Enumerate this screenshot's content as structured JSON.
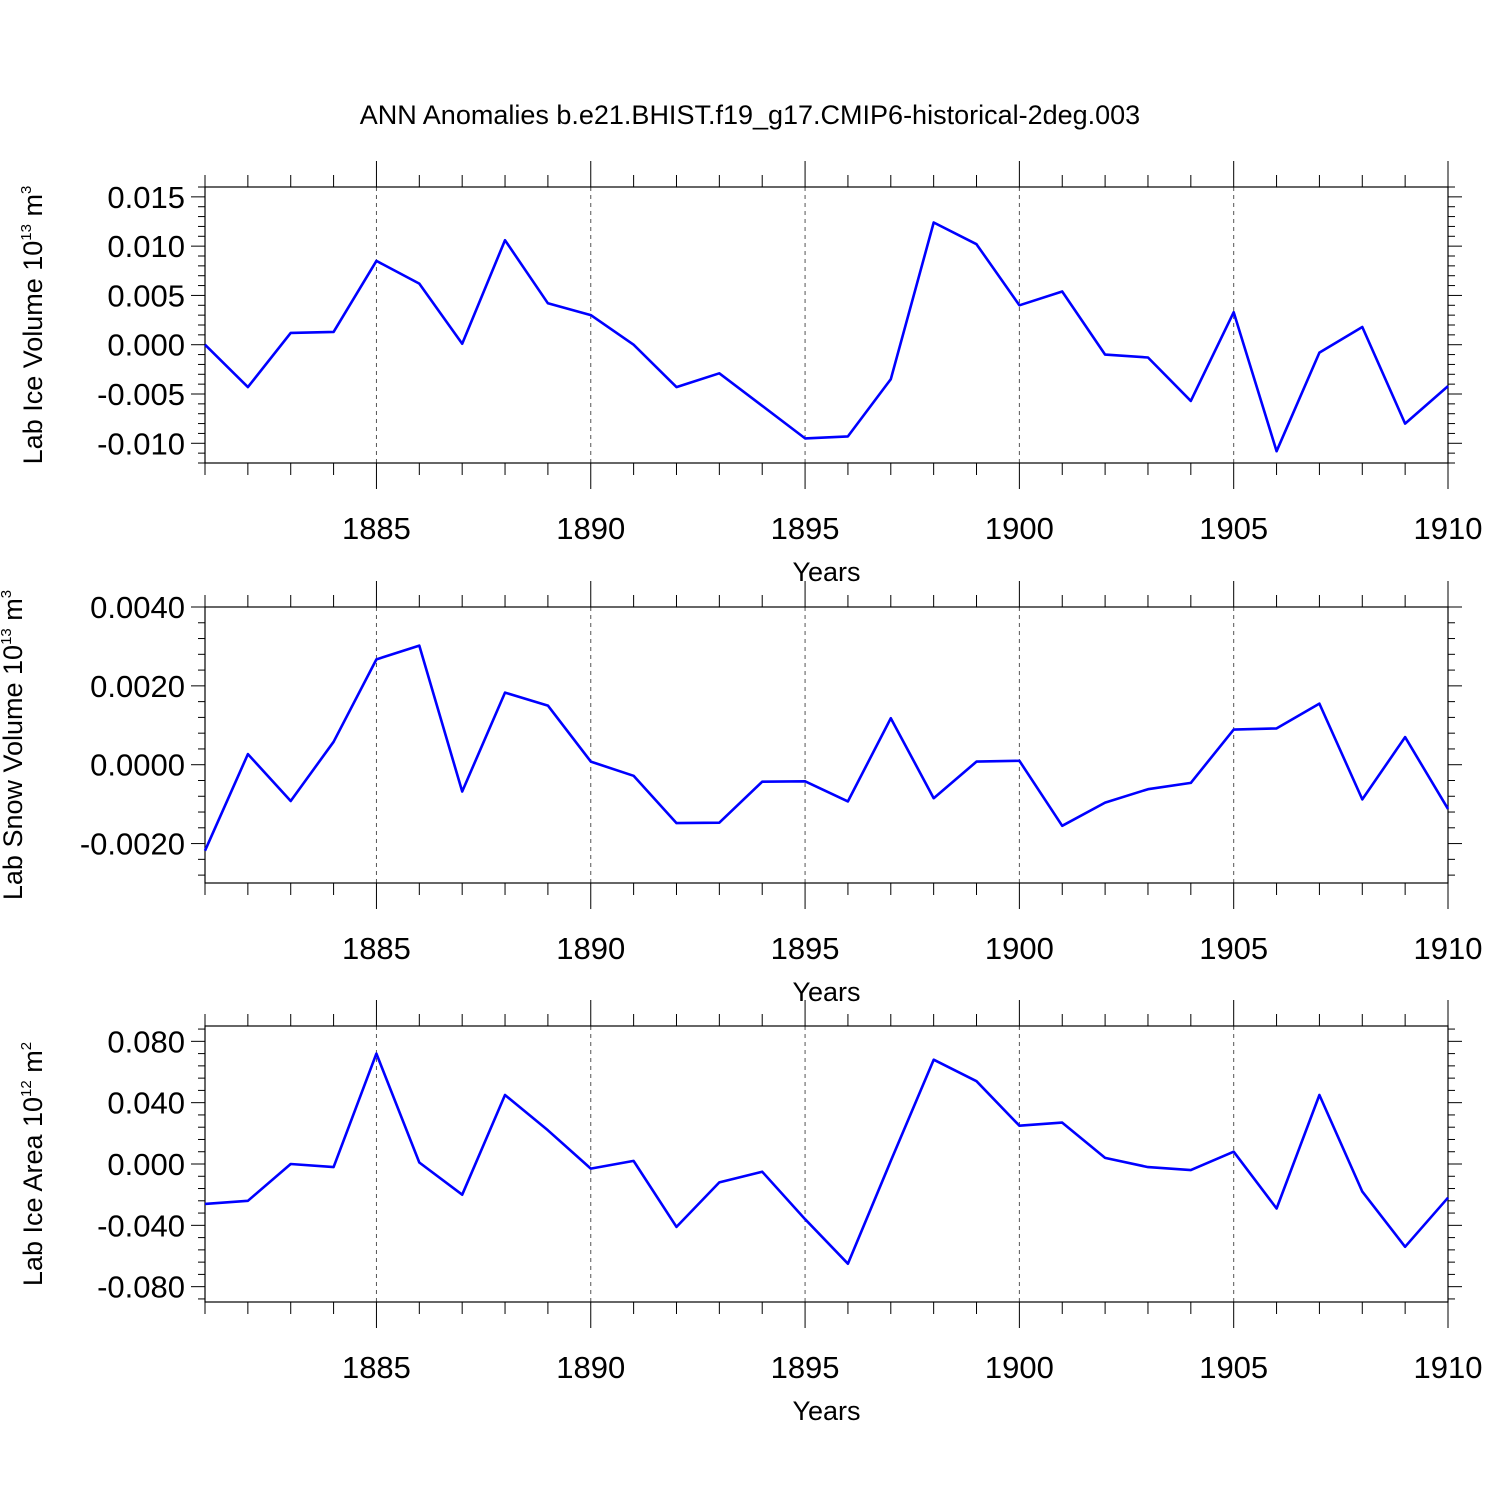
{
  "chart_data": {
    "type": "line",
    "title": "ANN Anomalies b.e21.BHIST.f19_g17.CMIP6-historical-2deg.003",
    "line_color": "#0000ff",
    "grid": "dashed vertical lines at major ticks",
    "panels": [
      {
        "name": "ice-volume",
        "xlabel": "Years",
        "ylabel": {
          "main": "Lab Ice Volume 10",
          "sup1": "13",
          "mid": " m",
          "sup2": "3"
        },
        "xlim": [
          1881,
          1910
        ],
        "ylim": [
          -0.012,
          0.016
        ],
        "xticks": [
          "1885",
          "1890",
          "1895",
          "1900",
          "1905",
          "1910"
        ],
        "yticks": [
          "0.015",
          "0.010",
          "0.005",
          "0.000",
          "-0.005",
          "-0.010"
        ],
        "ytick_values": [
          0.015,
          0.01,
          0.005,
          0.0,
          -0.005,
          -0.01
        ],
        "x": [
          1881,
          1882,
          1883,
          1884,
          1885,
          1886,
          1887,
          1888,
          1889,
          1890,
          1891,
          1892,
          1893,
          1894,
          1895,
          1896,
          1897,
          1898,
          1899,
          1900,
          1901,
          1902,
          1903,
          1904,
          1905,
          1906,
          1907,
          1908,
          1909,
          1910
        ],
        "values": [
          0.0,
          -0.0043,
          0.0012,
          0.0013,
          0.0085,
          0.0062,
          0.0001,
          0.0106,
          0.0042,
          0.003,
          0.0,
          -0.0043,
          -0.0029,
          -0.0062,
          -0.0095,
          -0.0093,
          -0.0035,
          0.0124,
          0.0102,
          0.004,
          0.0054,
          -0.001,
          -0.0013,
          -0.0057,
          0.0033,
          -0.0108,
          -0.0008,
          0.0018,
          -0.008,
          -0.0042
        ]
      },
      {
        "name": "snow-volume",
        "xlabel": "Years",
        "ylabel": {
          "main": "Lab Snow Volume 10",
          "sup1": "13",
          "mid": " m",
          "sup2": "3"
        },
        "xlim": [
          1881,
          1910
        ],
        "ylim": [
          -0.003,
          0.004
        ],
        "xticks": [
          "1885",
          "1890",
          "1895",
          "1900",
          "1905",
          "1910"
        ],
        "yticks": [
          "0.0040",
          "0.0020",
          "0.0000",
          "-0.0020"
        ],
        "ytick_values": [
          0.004,
          0.002,
          0.0,
          -0.002
        ],
        "x": [
          1881,
          1882,
          1883,
          1884,
          1885,
          1886,
          1887,
          1888,
          1889,
          1890,
          1891,
          1892,
          1893,
          1894,
          1895,
          1896,
          1897,
          1898,
          1899,
          1900,
          1901,
          1902,
          1903,
          1904,
          1905,
          1906,
          1907,
          1908,
          1909,
          1910
        ],
        "values": [
          -0.00218,
          0.00027,
          -0.00092,
          0.00058,
          0.00267,
          0.00302,
          -0.00068,
          0.00183,
          0.0015,
          8e-05,
          -0.00028,
          -0.00148,
          -0.00147,
          -0.00043,
          -0.00042,
          -0.00093,
          0.00118,
          -0.00085,
          8e-05,
          0.0001,
          -0.00155,
          -0.00096,
          -0.00062,
          -0.00046,
          0.00089,
          0.00092,
          0.00155,
          -0.00088,
          0.0007,
          -0.00112
        ]
      },
      {
        "name": "ice-area",
        "xlabel": "Years",
        "ylabel": {
          "main": "Lab Ice Area 10",
          "sup1": "12",
          "mid": " m",
          "sup2": "2"
        },
        "xlim": [
          1881,
          1910
        ],
        "ylim": [
          -0.09,
          0.09
        ],
        "xticks": [
          "1885",
          "1890",
          "1895",
          "1900",
          "1905",
          "1910"
        ],
        "yticks": [
          "0.080",
          "0.040",
          "0.000",
          "-0.040",
          "-0.080"
        ],
        "ytick_values": [
          0.08,
          0.04,
          0.0,
          -0.04,
          -0.08
        ],
        "x": [
          1881,
          1882,
          1883,
          1884,
          1885,
          1886,
          1887,
          1888,
          1889,
          1890,
          1891,
          1892,
          1893,
          1894,
          1895,
          1896,
          1897,
          1898,
          1899,
          1900,
          1901,
          1902,
          1903,
          1904,
          1905,
          1906,
          1907,
          1908,
          1909,
          1910
        ],
        "values": [
          -0.026,
          -0.024,
          0.0,
          -0.002,
          0.072,
          0.001,
          -0.02,
          0.045,
          0.022,
          -0.003,
          0.002,
          -0.041,
          -0.012,
          -0.005,
          -0.036,
          -0.065,
          0.002,
          0.068,
          0.054,
          0.025,
          0.027,
          0.004,
          -0.002,
          -0.004,
          0.008,
          -0.029,
          0.045,
          -0.018,
          -0.054,
          -0.022
        ]
      }
    ]
  }
}
